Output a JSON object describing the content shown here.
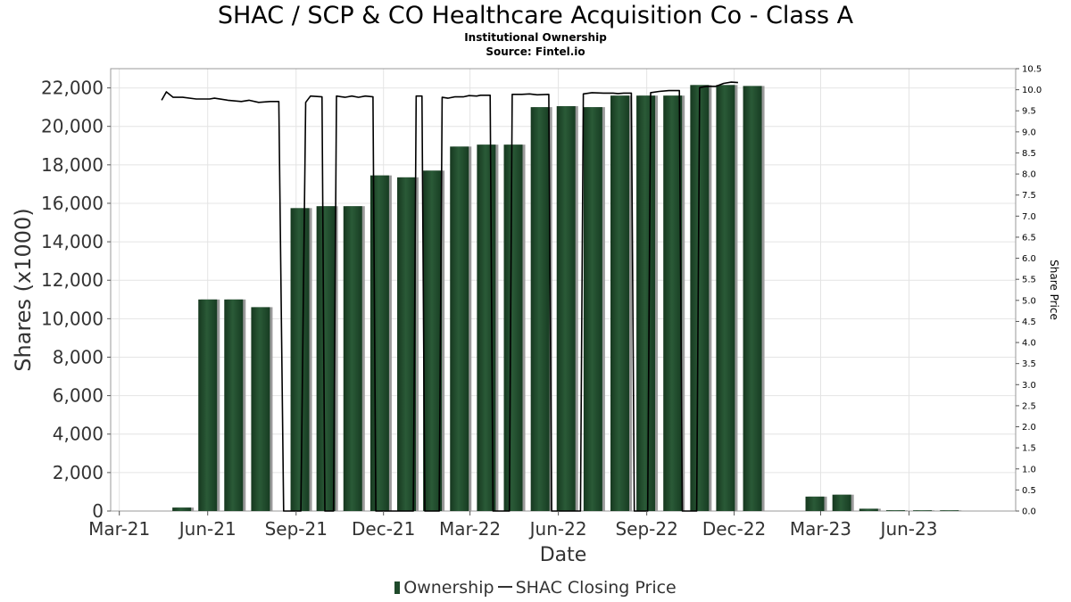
{
  "chart_data": {
    "type": "bar",
    "title": "SHAC / SCP & CO Healthcare Acquisition Co - Class A",
    "subtitle": "Institutional Ownership",
    "source": "Source: Fintel.io",
    "xlabel": "Date",
    "ylabel": "Shares (x1000)",
    "y2label": "Share Price",
    "ylim": [
      0,
      23000
    ],
    "y2lim": [
      0,
      10.5
    ],
    "y_ticks": [
      "0",
      "2,000",
      "4,000",
      "6,000",
      "8,000",
      "10,000",
      "12,000",
      "14,000",
      "16,000",
      "18,000",
      "20,000",
      "22,000"
    ],
    "y2_ticks": [
      "0.0",
      "0.5",
      "1.0",
      "1.5",
      "2.0",
      "2.5",
      "3.0",
      "3.5",
      "4.0",
      "4.5",
      "5.0",
      "5.5",
      "6.0",
      "6.5",
      "7.0",
      "7.5",
      "8.0",
      "8.5",
      "9.0",
      "9.5",
      "10.0",
      "10.5"
    ],
    "x_ticks": [
      {
        "label": "Mar-21",
        "date": "2021-03-01"
      },
      {
        "label": "Jun-21",
        "date": "2021-06-01"
      },
      {
        "label": "Sep-21",
        "date": "2021-09-01"
      },
      {
        "label": "Dec-21",
        "date": "2021-12-01"
      },
      {
        "label": "Mar-22",
        "date": "2022-03-01"
      },
      {
        "label": "Jun-22",
        "date": "2022-06-01"
      },
      {
        "label": "Sep-22",
        "date": "2022-09-01"
      },
      {
        "label": "Dec-22",
        "date": "2022-12-01"
      },
      {
        "label": "Mar-23",
        "date": "2023-03-01"
      },
      {
        "label": "Jun-23",
        "date": "2023-06-01"
      }
    ],
    "xlim": [
      "2021-02-20",
      "2023-09-20"
    ],
    "grid": true,
    "legend_position": "bottom",
    "series": [
      {
        "name": "Ownership",
        "type": "bar",
        "color": "#1f4a2b",
        "points": [
          {
            "date": "2021-05-05",
            "value": 180
          },
          {
            "date": "2021-06-01",
            "value": 11000
          },
          {
            "date": "2021-06-28",
            "value": 11000
          },
          {
            "date": "2021-07-26",
            "value": 10600
          },
          {
            "date": "2021-09-05",
            "value": 15750
          },
          {
            "date": "2021-10-02",
            "value": 15850
          },
          {
            "date": "2021-10-30",
            "value": 15850
          },
          {
            "date": "2021-11-27",
            "value": 17450
          },
          {
            "date": "2021-12-25",
            "value": 17350
          },
          {
            "date": "2022-01-21",
            "value": 17700
          },
          {
            "date": "2022-02-18",
            "value": 18950
          },
          {
            "date": "2022-03-18",
            "value": 19050
          },
          {
            "date": "2022-04-15",
            "value": 19050
          },
          {
            "date": "2022-05-13",
            "value": 21000
          },
          {
            "date": "2022-06-09",
            "value": 21050
          },
          {
            "date": "2022-07-07",
            "value": 21000
          },
          {
            "date": "2022-08-04",
            "value": 21600
          },
          {
            "date": "2022-08-31",
            "value": 21600
          },
          {
            "date": "2022-09-28",
            "value": 21600
          },
          {
            "date": "2022-10-26",
            "value": 22150
          },
          {
            "date": "2022-11-22",
            "value": 22150
          },
          {
            "date": "2022-12-20",
            "value": 22100
          },
          {
            "date": "2023-02-23",
            "value": 750
          },
          {
            "date": "2023-03-23",
            "value": 850
          },
          {
            "date": "2023-04-20",
            "value": 120
          },
          {
            "date": "2023-05-18",
            "value": 40
          },
          {
            "date": "2023-06-15",
            "value": 15
          },
          {
            "date": "2023-07-13",
            "value": 5
          }
        ]
      },
      {
        "name": "SHAC Closing Price",
        "type": "line",
        "color": "#000000",
        "points": [
          {
            "date": "2021-04-14",
            "value": 9.75
          },
          {
            "date": "2021-04-19",
            "value": 9.95
          },
          {
            "date": "2021-04-26",
            "value": 9.82
          },
          {
            "date": "2021-05-06",
            "value": 9.82
          },
          {
            "date": "2021-05-20",
            "value": 9.78
          },
          {
            "date": "2021-06-03",
            "value": 9.78
          },
          {
            "date": "2021-06-08",
            "value": 9.8
          },
          {
            "date": "2021-06-22",
            "value": 9.75
          },
          {
            "date": "2021-07-06",
            "value": 9.72
          },
          {
            "date": "2021-07-14",
            "value": 9.75
          },
          {
            "date": "2021-07-24",
            "value": 9.7
          },
          {
            "date": "2021-08-05",
            "value": 9.72
          },
          {
            "date": "2021-08-14",
            "value": 9.72
          },
          {
            "date": "2021-08-19",
            "value": 0.0
          },
          {
            "date": "2021-09-06",
            "value": 0.0
          },
          {
            "date": "2021-09-11",
            "value": 9.7
          },
          {
            "date": "2021-09-16",
            "value": 9.85
          },
          {
            "date": "2021-09-28",
            "value": 9.83
          },
          {
            "date": "2021-10-01",
            "value": 0.0
          },
          {
            "date": "2021-10-10",
            "value": 0.0
          },
          {
            "date": "2021-10-13",
            "value": 9.85
          },
          {
            "date": "2021-10-22",
            "value": 9.82
          },
          {
            "date": "2021-10-29",
            "value": 9.85
          },
          {
            "date": "2021-11-05",
            "value": 9.82
          },
          {
            "date": "2021-11-12",
            "value": 9.85
          },
          {
            "date": "2021-11-20",
            "value": 9.83
          },
          {
            "date": "2021-11-23",
            "value": 0.0
          },
          {
            "date": "2022-01-01",
            "value": 0.0
          },
          {
            "date": "2022-01-04",
            "value": 9.85
          },
          {
            "date": "2022-01-10",
            "value": 9.85
          },
          {
            "date": "2022-01-13",
            "value": 0.0
          },
          {
            "date": "2022-01-28",
            "value": 0.0
          },
          {
            "date": "2022-01-31",
            "value": 9.82
          },
          {
            "date": "2022-02-06",
            "value": 9.8
          },
          {
            "date": "2022-02-13",
            "value": 9.83
          },
          {
            "date": "2022-02-22",
            "value": 9.83
          },
          {
            "date": "2022-02-28",
            "value": 9.86
          },
          {
            "date": "2022-03-08",
            "value": 9.85
          },
          {
            "date": "2022-03-12",
            "value": 9.87
          },
          {
            "date": "2022-03-22",
            "value": 9.87
          },
          {
            "date": "2022-03-25",
            "value": 0.0
          },
          {
            "date": "2022-04-11",
            "value": 0.0
          },
          {
            "date": "2022-04-14",
            "value": 9.89
          },
          {
            "date": "2022-04-24",
            "value": 9.89
          },
          {
            "date": "2022-05-02",
            "value": 9.9
          },
          {
            "date": "2022-05-10",
            "value": 9.88
          },
          {
            "date": "2022-05-22",
            "value": 9.89
          },
          {
            "date": "2022-05-25",
            "value": 0.0
          },
          {
            "date": "2022-06-24",
            "value": 0.0
          },
          {
            "date": "2022-06-27",
            "value": 9.9
          },
          {
            "date": "2022-07-06",
            "value": 9.93
          },
          {
            "date": "2022-07-18",
            "value": 9.92
          },
          {
            "date": "2022-07-28",
            "value": 9.92
          },
          {
            "date": "2022-08-02",
            "value": 9.91
          },
          {
            "date": "2022-08-08",
            "value": 9.92
          },
          {
            "date": "2022-08-16",
            "value": 9.92
          },
          {
            "date": "2022-08-19",
            "value": 0.0
          },
          {
            "date": "2022-09-02",
            "value": 0.0
          },
          {
            "date": "2022-09-05",
            "value": 9.93
          },
          {
            "date": "2022-09-14",
            "value": 9.96
          },
          {
            "date": "2022-09-24",
            "value": 9.98
          },
          {
            "date": "2022-10-05",
            "value": 9.98
          },
          {
            "date": "2022-10-08",
            "value": 0.0
          },
          {
            "date": "2022-10-23",
            "value": 0.0
          },
          {
            "date": "2022-10-26",
            "value": 10.05
          },
          {
            "date": "2022-11-02",
            "value": 10.08
          },
          {
            "date": "2022-11-12",
            "value": 10.08
          },
          {
            "date": "2022-11-20",
            "value": 10.15
          },
          {
            "date": "2022-11-28",
            "value": 10.18
          },
          {
            "date": "2022-12-05",
            "value": 10.17
          }
        ]
      }
    ]
  },
  "legend": {
    "ownership": "Ownership",
    "price": "SHAC Closing Price"
  }
}
